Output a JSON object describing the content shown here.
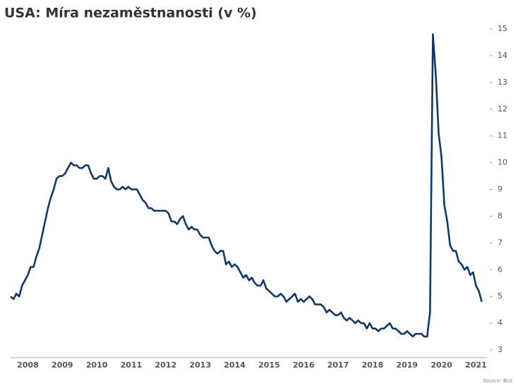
{
  "chart_data": {
    "type": "line",
    "title": "USA: Míra nezaměstnanosti (v %)",
    "source": "Source: BLS",
    "categories": [
      null,
      null,
      null,
      null,
      null,
      null,
      "2008",
      null,
      null,
      null,
      null,
      null,
      null,
      null,
      null,
      null,
      null,
      null,
      "2009",
      null,
      null,
      null,
      null,
      null,
      null,
      null,
      null,
      null,
      null,
      null,
      "2010",
      null,
      null,
      null,
      null,
      null,
      null,
      null,
      null,
      null,
      null,
      null,
      "2011",
      null,
      null,
      null,
      null,
      null,
      null,
      null,
      null,
      null,
      null,
      null,
      "2012",
      null,
      null,
      null,
      null,
      null,
      null,
      null,
      null,
      null,
      null,
      null,
      "2013",
      null,
      null,
      null,
      null,
      null,
      null,
      null,
      null,
      null,
      null,
      null,
      "2014",
      null,
      null,
      null,
      null,
      null,
      null,
      null,
      null,
      null,
      null,
      null,
      "2015",
      null,
      null,
      null,
      null,
      null,
      null,
      null,
      null,
      null,
      null,
      null,
      "2016",
      null,
      null,
      null,
      null,
      null,
      null,
      null,
      null,
      null,
      null,
      null,
      "2017",
      null,
      null,
      null,
      null,
      null,
      null,
      null,
      null,
      null,
      null,
      null,
      "2018",
      null,
      null,
      null,
      null,
      null,
      null,
      null,
      null,
      null,
      null,
      null,
      "2019",
      null,
      null,
      null,
      null,
      null,
      null,
      null,
      null,
      null,
      null,
      null,
      "2020",
      null,
      null,
      null,
      null,
      null,
      null,
      null,
      null,
      null,
      null,
      null,
      "2021",
      null,
      null
    ],
    "series": [
      {
        "color": "#0d3a6b",
        "values": [
          5.0,
          4.9,
          5.1,
          5.0,
          5.4,
          5.6,
          5.8,
          6.1,
          6.1,
          6.5,
          6.8,
          7.3,
          7.8,
          8.3,
          8.7,
          9.0,
          9.4,
          9.5,
          9.5,
          9.6,
          9.8,
          10.0,
          9.9,
          9.9,
          9.8,
          9.8,
          9.9,
          9.9,
          9.6,
          9.4,
          9.4,
          9.5,
          9.5,
          9.4,
          9.8,
          9.3,
          9.1,
          9.0,
          9.0,
          9.1,
          9.0,
          9.1,
          9.0,
          9.0,
          9.0,
          8.8,
          8.6,
          8.5,
          8.3,
          8.3,
          8.2,
          8.2,
          8.2,
          8.2,
          8.2,
          8.1,
          7.8,
          7.8,
          7.7,
          7.9,
          8.0,
          7.7,
          7.5,
          7.6,
          7.5,
          7.5,
          7.3,
          7.2,
          7.2,
          7.2,
          6.9,
          6.7,
          6.6,
          6.7,
          6.7,
          6.2,
          6.3,
          6.1,
          6.2,
          6.1,
          5.9,
          5.7,
          5.8,
          5.6,
          5.7,
          5.5,
          5.4,
          5.4,
          5.6,
          5.3,
          5.2,
          5.1,
          5.0,
          5.0,
          5.1,
          5.0,
          4.8,
          4.9,
          5.0,
          5.1,
          4.8,
          4.9,
          4.8,
          4.9,
          5.0,
          4.9,
          4.7,
          4.7,
          4.7,
          4.6,
          4.4,
          4.5,
          4.4,
          4.3,
          4.3,
          4.4,
          4.2,
          4.1,
          4.2,
          4.1,
          4.0,
          4.1,
          4.0,
          4.0,
          3.8,
          4.0,
          3.8,
          3.8,
          3.7,
          3.8,
          3.8,
          3.9,
          4.0,
          3.8,
          3.8,
          3.7,
          3.6,
          3.6,
          3.7,
          3.6,
          3.5,
          3.6,
          3.6,
          3.6,
          3.5,
          3.5,
          4.4,
          14.8,
          13.3,
          11.1,
          10.2,
          8.4,
          7.8,
          6.9,
          6.7,
          6.7,
          6.3,
          6.2,
          6.0,
          6.1,
          5.8,
          5.9,
          5.4,
          5.2,
          4.8
        ]
      }
    ],
    "ylim": [
      3,
      15
    ],
    "yticks": [
      3,
      4,
      5,
      6,
      7,
      8,
      9,
      10,
      11,
      12,
      13,
      14,
      15
    ]
  }
}
